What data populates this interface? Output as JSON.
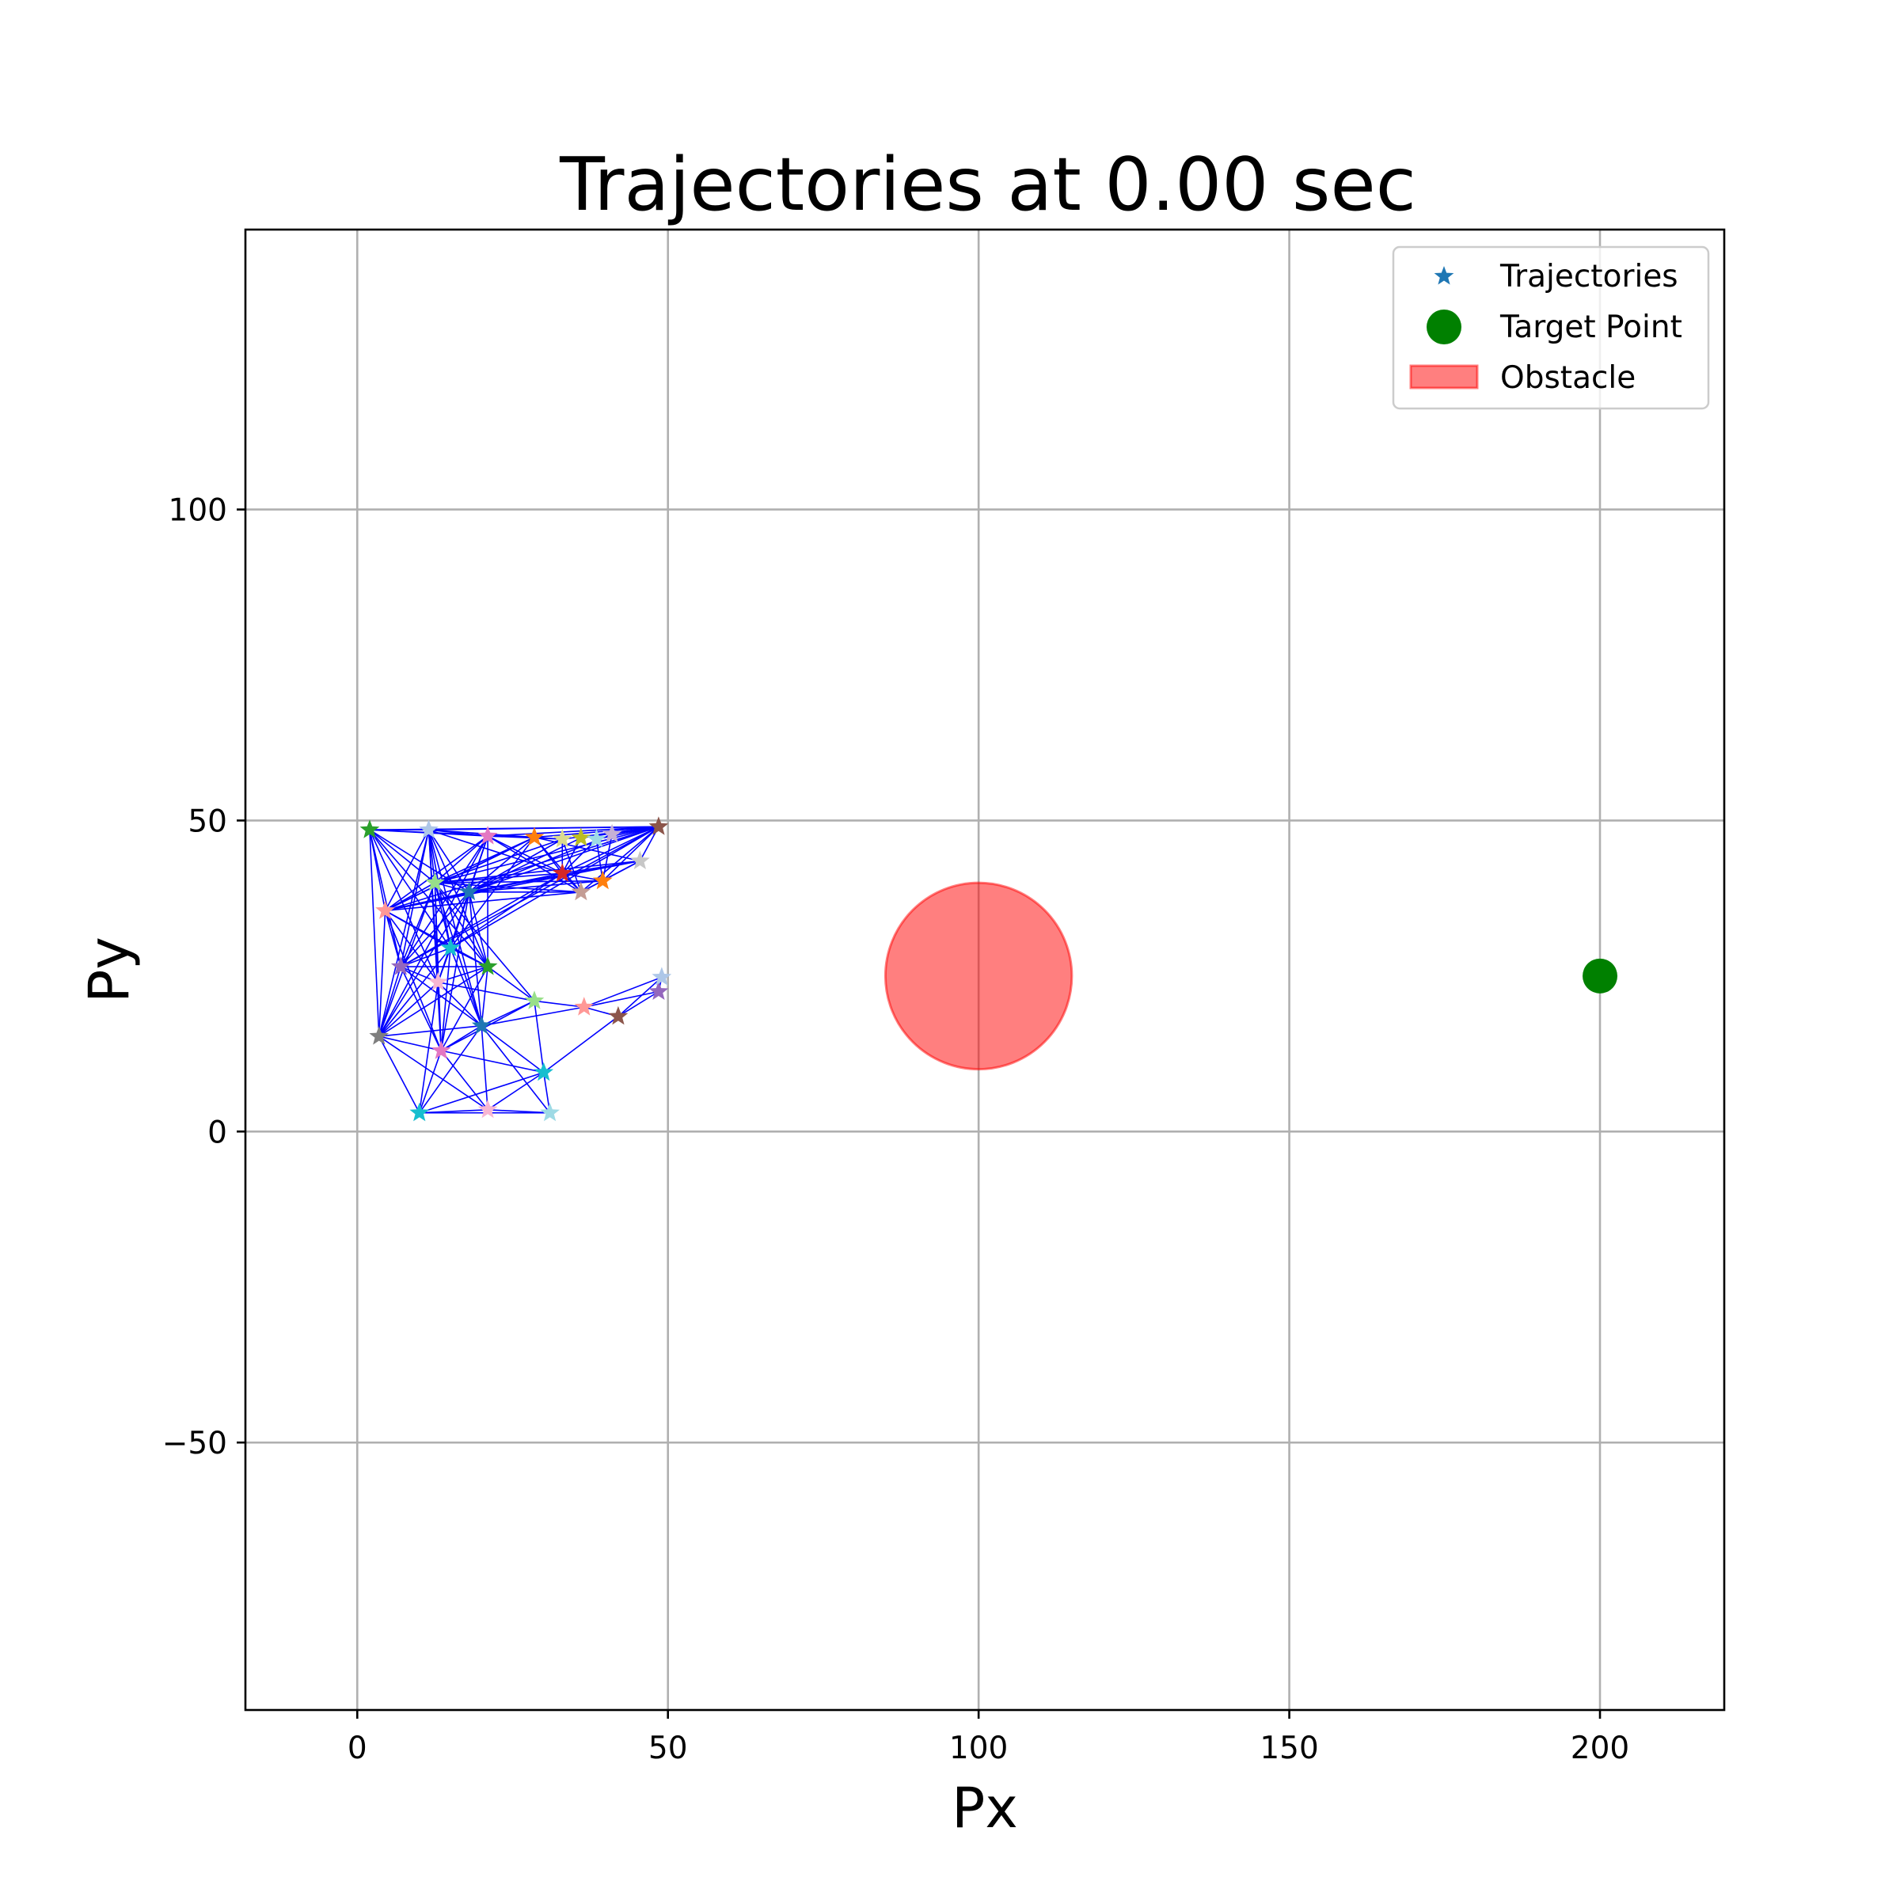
{
  "chart_data": {
    "type": "scatter",
    "title": "Trajectories at 0.00 sec",
    "xlabel": "Px",
    "ylabel": "Py",
    "xlim": [
      -18,
      220
    ],
    "ylim": [
      -93,
      145
    ],
    "xticks": [
      0,
      50,
      100,
      150,
      200
    ],
    "yticks": [
      -50,
      0,
      50,
      100
    ],
    "xtick_labels": [
      "0",
      "50",
      "100",
      "150",
      "200"
    ],
    "ytick_labels": [
      "−50",
      "0",
      "50",
      "100"
    ],
    "grid": true,
    "legend": {
      "placement": "top-right",
      "entries": [
        {
          "label": "Trajectories",
          "marker": "star",
          "color": "#1f77b4"
        },
        {
          "label": "Target Point",
          "marker": "circle",
          "color": "#008000"
        },
        {
          "label": "Obstacle",
          "marker": "patch",
          "color": "#ff0000"
        }
      ]
    },
    "edge_color": "#0000ff",
    "agents": [
      {
        "x": 2,
        "y": 48.5,
        "color": "#2ca02c"
      },
      {
        "x": 11.5,
        "y": 48.5,
        "color": "#aec7e8"
      },
      {
        "x": 21,
        "y": 47.5,
        "color": "#e377c2"
      },
      {
        "x": 28.5,
        "y": 47.3,
        "color": "#ff7f0e"
      },
      {
        "x": 33,
        "y": 47,
        "color": "#dbdb8d"
      },
      {
        "x": 36,
        "y": 47.2,
        "color": "#bcbd22"
      },
      {
        "x": 38.5,
        "y": 47,
        "color": "#9edae5"
      },
      {
        "x": 41,
        "y": 47.8,
        "color": "#c5b0d5"
      },
      {
        "x": 48.5,
        "y": 49,
        "color": "#8c564b"
      },
      {
        "x": 45.5,
        "y": 43.5,
        "color": "#c7c7c7"
      },
      {
        "x": 33,
        "y": 41.5,
        "color": "#d62728"
      },
      {
        "x": 36,
        "y": 38.5,
        "color": "#c49c94"
      },
      {
        "x": 39.5,
        "y": 40.3,
        "color": "#ff7f0e"
      },
      {
        "x": 4.5,
        "y": 35.5,
        "color": "#ff9896"
      },
      {
        "x": 12.5,
        "y": 40,
        "color": "#98df8a"
      },
      {
        "x": 18,
        "y": 38.5,
        "color": "#1f77b4"
      },
      {
        "x": 7,
        "y": 26.5,
        "color": "#9467bd"
      },
      {
        "x": 15,
        "y": 29.5,
        "color": "#17becf"
      },
      {
        "x": 21,
        "y": 26.5,
        "color": "#2ca02c"
      },
      {
        "x": 13,
        "y": 24,
        "color": "#f7b6d2"
      },
      {
        "x": 28.5,
        "y": 21,
        "color": "#98df8a"
      },
      {
        "x": 36.5,
        "y": 20,
        "color": "#ff9896"
      },
      {
        "x": 42,
        "y": 18.5,
        "color": "#8c564b"
      },
      {
        "x": 48.5,
        "y": 22.5,
        "color": "#9467bd"
      },
      {
        "x": 49,
        "y": 24.8,
        "color": "#aec7e8"
      },
      {
        "x": 3.5,
        "y": 15.3,
        "color": "#7f7f7f"
      },
      {
        "x": 13.5,
        "y": 13,
        "color": "#e377c2"
      },
      {
        "x": 20,
        "y": 17,
        "color": "#1f77b4"
      },
      {
        "x": 30,
        "y": 9.5,
        "color": "#17becf"
      },
      {
        "x": 10,
        "y": 3,
        "color": "#17becf"
      },
      {
        "x": 21,
        "y": 3.5,
        "color": "#f7b6d2"
      },
      {
        "x": 31,
        "y": 3,
        "color": "#9edae5"
      }
    ],
    "edges": [
      [
        0,
        1
      ],
      [
        0,
        2
      ],
      [
        0,
        3
      ],
      [
        0,
        8
      ],
      [
        0,
        13
      ],
      [
        0,
        14
      ],
      [
        0,
        15
      ],
      [
        0,
        16
      ],
      [
        0,
        17
      ],
      [
        0,
        18
      ],
      [
        0,
        25
      ],
      [
        0,
        19
      ],
      [
        1,
        2
      ],
      [
        1,
        3
      ],
      [
        1,
        8
      ],
      [
        1,
        13
      ],
      [
        1,
        14
      ],
      [
        1,
        15
      ],
      [
        1,
        16
      ],
      [
        1,
        17
      ],
      [
        1,
        18
      ],
      [
        1,
        19
      ],
      [
        1,
        25
      ],
      [
        1,
        26
      ],
      [
        1,
        27
      ],
      [
        1,
        10
      ],
      [
        2,
        3
      ],
      [
        2,
        4
      ],
      [
        2,
        8
      ],
      [
        2,
        10
      ],
      [
        2,
        13
      ],
      [
        2,
        14
      ],
      [
        2,
        15
      ],
      [
        2,
        16
      ],
      [
        2,
        17
      ],
      [
        2,
        18
      ],
      [
        2,
        19
      ],
      [
        2,
        25
      ],
      [
        2,
        11
      ],
      [
        3,
        4
      ],
      [
        3,
        8
      ],
      [
        3,
        10
      ],
      [
        3,
        11
      ],
      [
        3,
        14
      ],
      [
        3,
        15
      ],
      [
        3,
        17
      ],
      [
        3,
        13
      ],
      [
        4,
        8
      ],
      [
        4,
        10
      ],
      [
        4,
        11
      ],
      [
        4,
        14
      ],
      [
        4,
        15
      ],
      [
        5,
        8
      ],
      [
        5,
        10
      ],
      [
        5,
        15
      ],
      [
        6,
        8
      ],
      [
        6,
        10
      ],
      [
        6,
        12
      ],
      [
        7,
        8
      ],
      [
        7,
        12
      ],
      [
        7,
        15
      ],
      [
        8,
        9
      ],
      [
        8,
        10
      ],
      [
        8,
        11
      ],
      [
        8,
        12
      ],
      [
        8,
        13
      ],
      [
        8,
        14
      ],
      [
        8,
        15
      ],
      [
        8,
        17
      ],
      [
        8,
        16
      ],
      [
        9,
        10
      ],
      [
        9,
        11
      ],
      [
        9,
        12
      ],
      [
        9,
        14
      ],
      [
        9,
        15
      ],
      [
        9,
        3
      ],
      [
        10,
        11
      ],
      [
        10,
        12
      ],
      [
        10,
        13
      ],
      [
        10,
        14
      ],
      [
        10,
        15
      ],
      [
        10,
        16
      ],
      [
        10,
        17
      ],
      [
        11,
        12
      ],
      [
        11,
        14
      ],
      [
        11,
        15
      ],
      [
        11,
        13
      ],
      [
        12,
        14
      ],
      [
        12,
        15
      ],
      [
        13,
        14
      ],
      [
        13,
        15
      ],
      [
        13,
        16
      ],
      [
        13,
        17
      ],
      [
        13,
        18
      ],
      [
        13,
        19
      ],
      [
        13,
        25
      ],
      [
        13,
        26
      ],
      [
        13,
        3
      ],
      [
        13,
        9
      ],
      [
        14,
        15
      ],
      [
        14,
        16
      ],
      [
        14,
        17
      ],
      [
        14,
        18
      ],
      [
        14,
        19
      ],
      [
        14,
        25
      ],
      [
        14,
        26
      ],
      [
        14,
        20
      ],
      [
        14,
        27
      ],
      [
        15,
        16
      ],
      [
        15,
        17
      ],
      [
        15,
        18
      ],
      [
        15,
        19
      ],
      [
        15,
        25
      ],
      [
        15,
        26
      ],
      [
        15,
        27
      ],
      [
        16,
        17
      ],
      [
        16,
        18
      ],
      [
        16,
        19
      ],
      [
        16,
        25
      ],
      [
        16,
        26
      ],
      [
        16,
        27
      ],
      [
        17,
        18
      ],
      [
        17,
        19
      ],
      [
        17,
        25
      ],
      [
        17,
        26
      ],
      [
        17,
        27
      ],
      [
        18,
        19
      ],
      [
        18,
        20
      ],
      [
        18,
        25
      ],
      [
        18,
        26
      ],
      [
        18,
        27
      ],
      [
        19,
        20
      ],
      [
        19,
        25
      ],
      [
        19,
        26
      ],
      [
        19,
        27
      ],
      [
        19,
        29
      ],
      [
        20,
        21
      ],
      [
        20,
        27
      ],
      [
        20,
        28
      ],
      [
        20,
        26
      ],
      [
        21,
        22
      ],
      [
        21,
        23
      ],
      [
        21,
        24
      ],
      [
        21,
        27
      ],
      [
        22,
        23
      ],
      [
        22,
        24
      ],
      [
        22,
        28
      ],
      [
        23,
        24
      ],
      [
        25,
        26
      ],
      [
        25,
        27
      ],
      [
        25,
        29
      ],
      [
        25,
        30
      ],
      [
        26,
        27
      ],
      [
        26,
        29
      ],
      [
        26,
        30
      ],
      [
        26,
        28
      ],
      [
        27,
        28
      ],
      [
        27,
        29
      ],
      [
        27,
        30
      ],
      [
        27,
        31
      ],
      [
        28,
        29
      ],
      [
        28,
        30
      ],
      [
        28,
        31
      ],
      [
        29,
        30
      ],
      [
        30,
        31
      ],
      [
        29,
        31
      ]
    ],
    "obstacle": {
      "cx": 100,
      "cy": 25,
      "r": 15,
      "color": "#ff0000"
    },
    "target": {
      "x": 200,
      "y": 25,
      "color": "#008000"
    }
  }
}
